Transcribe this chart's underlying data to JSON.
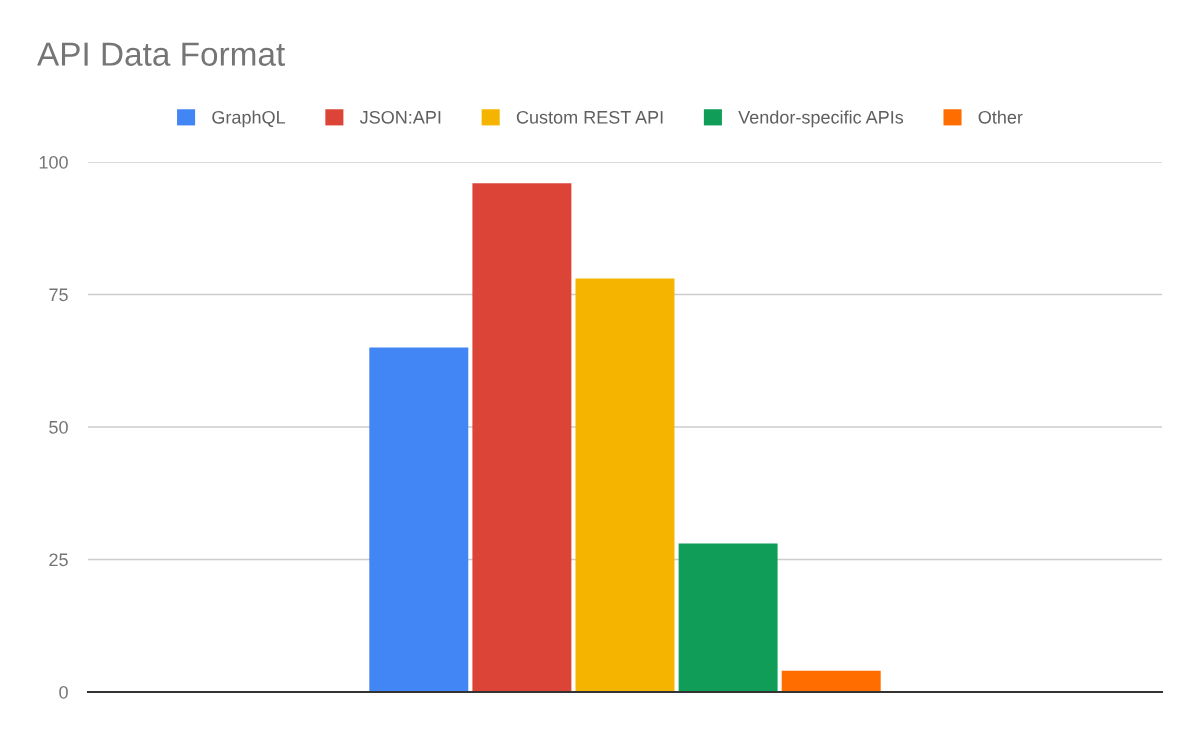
{
  "chart_data": {
    "type": "bar",
    "title": "API Data Format",
    "categories": [
      null
    ],
    "series": [
      {
        "name": "GraphQL",
        "color": "#4285f4",
        "values": [
          65
        ]
      },
      {
        "name": "JSON:API",
        "color": "#db4437",
        "values": [
          96
        ]
      },
      {
        "name": "Custom REST API",
        "color": "#f4b400",
        "values": [
          78
        ]
      },
      {
        "name": "Vendor-specific APIs",
        "color": "#0f9d58",
        "values": [
          28
        ]
      },
      {
        "name": "Other",
        "color": "#ff6d00",
        "values": [
          4
        ]
      }
    ],
    "ylim": [
      0,
      100
    ],
    "yticks": [
      0,
      25,
      50,
      75,
      100
    ],
    "grid": "y",
    "legend": "top",
    "tick_labels": "y"
  }
}
